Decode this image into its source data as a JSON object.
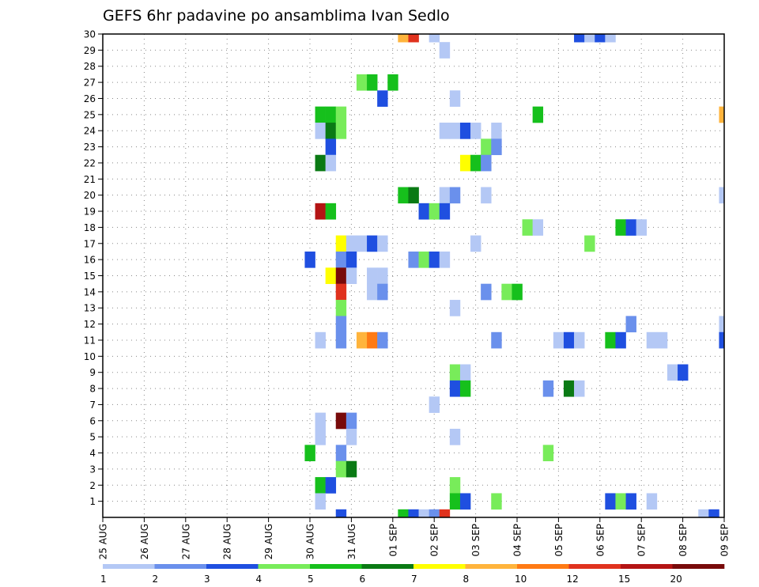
{
  "chart_data": {
    "type": "heatmap",
    "title": "GEFS 6hr padavine po ansamblima Ivan Sedlo",
    "xlabel": "",
    "ylabel": "",
    "x_tick_labels": [
      "25 AUG",
      "26 AUG",
      "27 AUG",
      "28 AUG",
      "29 AUG",
      "30 AUG",
      "31 AUG",
      "01 SEP",
      "02 SEP",
      "03 SEP",
      "04 SEP",
      "05 SEP",
      "06 SEP",
      "07 SEP",
      "08 SEP",
      "09 SEP"
    ],
    "y_tick_labels": [
      "1",
      "2",
      "3",
      "4",
      "5",
      "6",
      "7",
      "8",
      "9",
      "10",
      "11",
      "12",
      "13",
      "14",
      "15",
      "16",
      "17",
      "18",
      "19",
      "20",
      "21",
      "22",
      "23",
      "24",
      "25",
      "26",
      "27",
      "28",
      "29",
      "30"
    ],
    "x_unit": "6-hour step since 25 AUG 00Z",
    "y_range": [
      0,
      30
    ],
    "x_range": [
      0,
      60
    ],
    "grid": true,
    "colorbar": {
      "labels": [
        "1",
        "2",
        "3",
        "4",
        "5",
        "6",
        "7",
        "8",
        "10",
        "12",
        "15",
        "20"
      ],
      "colors": [
        "#b4c8f5",
        "#6a90ec",
        "#1f4fe0",
        "#78ec5a",
        "#16c01c",
        "#0a7a14",
        "#ffff00",
        "#ffb43c",
        "#ff7a14",
        "#e0321e",
        "#b41414",
        "#780a0a"
      ]
    },
    "cells": [
      [
        30,
        29,
        7
      ],
      [
        30,
        30,
        9
      ],
      [
        30,
        32,
        0
      ],
      [
        30,
        46,
        2
      ],
      [
        30,
        47,
        0
      ],
      [
        30,
        48,
        2
      ],
      [
        30,
        49,
        0
      ],
      [
        29,
        33,
        0
      ],
      [
        27,
        25,
        3
      ],
      [
        27,
        26,
        4
      ],
      [
        27,
        28,
        4
      ],
      [
        26,
        27,
        2
      ],
      [
        26,
        34,
        0
      ],
      [
        25,
        21,
        4
      ],
      [
        25,
        22,
        4
      ],
      [
        25,
        23,
        3
      ],
      [
        25,
        42,
        4
      ],
      [
        25,
        60,
        7
      ],
      [
        24,
        21,
        0
      ],
      [
        24,
        22,
        5
      ],
      [
        24,
        23,
        3
      ],
      [
        24,
        33,
        0
      ],
      [
        24,
        34,
        0
      ],
      [
        24,
        35,
        2
      ],
      [
        24,
        36,
        0
      ],
      [
        24,
        38,
        0
      ],
      [
        23,
        22,
        2
      ],
      [
        23,
        37,
        3
      ],
      [
        23,
        38,
        1
      ],
      [
        22,
        21,
        5
      ],
      [
        22,
        22,
        0
      ],
      [
        22,
        35,
        6
      ],
      [
        22,
        36,
        4
      ],
      [
        22,
        37,
        1
      ],
      [
        20,
        29,
        4
      ],
      [
        20,
        30,
        5
      ],
      [
        20,
        33,
        0
      ],
      [
        20,
        34,
        1
      ],
      [
        20,
        37,
        0
      ],
      [
        20,
        60,
        0
      ],
      [
        19,
        21,
        10
      ],
      [
        19,
        22,
        4
      ],
      [
        19,
        31,
        2
      ],
      [
        19,
        32,
        3
      ],
      [
        19,
        33,
        2
      ],
      [
        18,
        41,
        3
      ],
      [
        18,
        42,
        0
      ],
      [
        18,
        50,
        4
      ],
      [
        18,
        51,
        2
      ],
      [
        18,
        52,
        0
      ],
      [
        17,
        23,
        6
      ],
      [
        17,
        24,
        0
      ],
      [
        17,
        25,
        0
      ],
      [
        17,
        26,
        2
      ],
      [
        17,
        27,
        0
      ],
      [
        17,
        36,
        0
      ],
      [
        17,
        47,
        3
      ],
      [
        16,
        20,
        2
      ],
      [
        16,
        23,
        1
      ],
      [
        16,
        24,
        2
      ],
      [
        16,
        30,
        1
      ],
      [
        16,
        31,
        3
      ],
      [
        16,
        32,
        2
      ],
      [
        16,
        33,
        0
      ],
      [
        15,
        22,
        6
      ],
      [
        15,
        23,
        11
      ],
      [
        15,
        24,
        0
      ],
      [
        15,
        26,
        0
      ],
      [
        15,
        27,
        0
      ],
      [
        14,
        23,
        9
      ],
      [
        14,
        26,
        0
      ],
      [
        14,
        27,
        1
      ],
      [
        14,
        37,
        1
      ],
      [
        14,
        39,
        3
      ],
      [
        14,
        40,
        4
      ],
      [
        13,
        23,
        3
      ],
      [
        13,
        34,
        0
      ],
      [
        12,
        23,
        1
      ],
      [
        12,
        51,
        1
      ],
      [
        12,
        60,
        0
      ],
      [
        11,
        21,
        0
      ],
      [
        11,
        23,
        1
      ],
      [
        11,
        25,
        7
      ],
      [
        11,
        26,
        8
      ],
      [
        11,
        27,
        1
      ],
      [
        11,
        38,
        1
      ],
      [
        11,
        44,
        0
      ],
      [
        11,
        45,
        2
      ],
      [
        11,
        46,
        0
      ],
      [
        11,
        49,
        4
      ],
      [
        11,
        50,
        2
      ],
      [
        11,
        53,
        0
      ],
      [
        11,
        54,
        0
      ],
      [
        11,
        60,
        2
      ],
      [
        9,
        34,
        3
      ],
      [
        9,
        35,
        0
      ],
      [
        9,
        55,
        0
      ],
      [
        9,
        56,
        2
      ],
      [
        8,
        34,
        2
      ],
      [
        8,
        35,
        4
      ],
      [
        8,
        43,
        1
      ],
      [
        8,
        45,
        5
      ],
      [
        8,
        46,
        0
      ],
      [
        7,
        32,
        0
      ],
      [
        6,
        21,
        0
      ],
      [
        6,
        23,
        11
      ],
      [
        6,
        24,
        1
      ],
      [
        5,
        21,
        0
      ],
      [
        5,
        24,
        0
      ],
      [
        5,
        34,
        0
      ],
      [
        4,
        20,
        4
      ],
      [
        4,
        23,
        1
      ],
      [
        4,
        43,
        3
      ],
      [
        3,
        23,
        3
      ],
      [
        3,
        24,
        5
      ],
      [
        2,
        21,
        4
      ],
      [
        2,
        22,
        2
      ],
      [
        2,
        34,
        3
      ],
      [
        1,
        21,
        0
      ],
      [
        1,
        34,
        4
      ],
      [
        1,
        35,
        2
      ],
      [
        1,
        38,
        3
      ],
      [
        1,
        49,
        2
      ],
      [
        1,
        50,
        3
      ],
      [
        1,
        51,
        2
      ],
      [
        1,
        53,
        0
      ],
      [
        0,
        23,
        2
      ],
      [
        0,
        29,
        4
      ],
      [
        0,
        30,
        2
      ],
      [
        0,
        31,
        0
      ],
      [
        0,
        32,
        1
      ],
      [
        0,
        33,
        9
      ],
      [
        0,
        58,
        0
      ],
      [
        0,
        59,
        2
      ]
    ]
  }
}
